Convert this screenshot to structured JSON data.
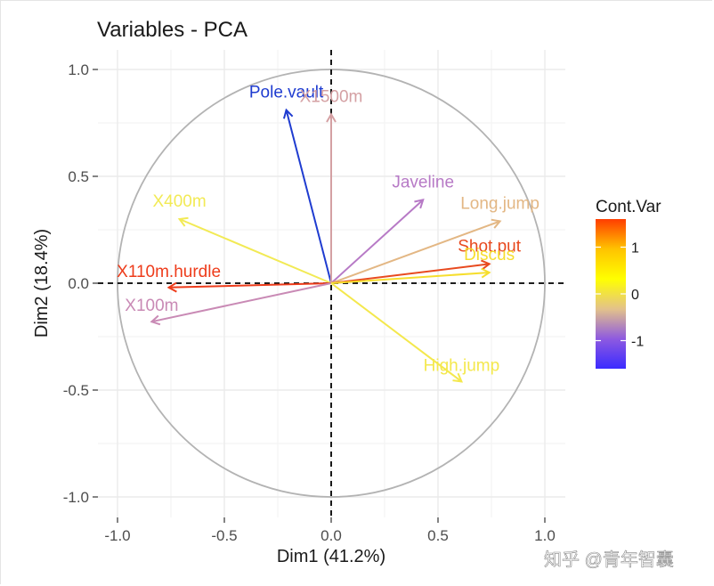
{
  "chart_data": {
    "type": "scatter",
    "title": "Variables - PCA",
    "xlabel": "Dim1 (41.2%)",
    "ylabel": "Dim2 (18.4%)",
    "xlim": [
      -1.0,
      1.0
    ],
    "ylim": [
      -1.0,
      1.0
    ],
    "x_ticks": [
      "-1.0",
      "-0.5",
      "0.0",
      "0.5",
      "1.0"
    ],
    "y_ticks": [
      "-1.0",
      "-0.5",
      "0.0",
      "0.5",
      "1.0"
    ],
    "x_tick_values": [
      -1.0,
      -0.5,
      0.0,
      0.5,
      1.0
    ],
    "y_tick_values": [
      -1.0,
      -0.5,
      0.0,
      0.5,
      1.0
    ],
    "grid": true,
    "correlation_circle": true,
    "variables": [
      {
        "name": "Pole.vault",
        "x": -0.21,
        "y": 0.81,
        "value": -1.6,
        "color": "#1f3cd0"
      },
      {
        "name": "X1500m",
        "x": 0.0,
        "y": 0.79,
        "value": 0.2,
        "color": "#d4a0a3"
      },
      {
        "name": "Javeline",
        "x": 0.43,
        "y": 0.39,
        "value": -0.6,
        "color": "#b77ac6"
      },
      {
        "name": "Long.jump",
        "x": 0.79,
        "y": 0.29,
        "value": 0.1,
        "color": "#e3b784"
      },
      {
        "name": "X400m",
        "x": -0.71,
        "y": 0.3,
        "value": 0.6,
        "color": "#f2ea55"
      },
      {
        "name": "Shot.put",
        "x": 0.74,
        "y": 0.09,
        "value": 1.4,
        "color": "#e84a1f"
      },
      {
        "name": "Discus",
        "x": 0.74,
        "y": 0.05,
        "value": 0.8,
        "color": "#f6de2e"
      },
      {
        "name": "X110m.hurdle",
        "x": -0.76,
        "y": -0.02,
        "value": 1.6,
        "color": "#ee3c1b"
      },
      {
        "name": "X100m",
        "x": -0.84,
        "y": -0.18,
        "value": -0.3,
        "color": "#c98ab5"
      },
      {
        "name": "High.jump",
        "x": 0.61,
        "y": -0.46,
        "value": 0.6,
        "color": "#f4e84d"
      }
    ],
    "legend": {
      "title": "Cont.Var",
      "placement": "right",
      "ticks": [
        "1",
        "0",
        "-1"
      ],
      "tick_values": [
        1,
        0,
        -1
      ],
      "range": [
        -1.6,
        1.6
      ],
      "gradient": [
        "#ff3d00",
        "#ffc300",
        "#ffff00",
        "#e3c28a",
        "#8e5ae0",
        "#3b2bff"
      ]
    }
  },
  "watermark": "知乎 @青年智囊"
}
